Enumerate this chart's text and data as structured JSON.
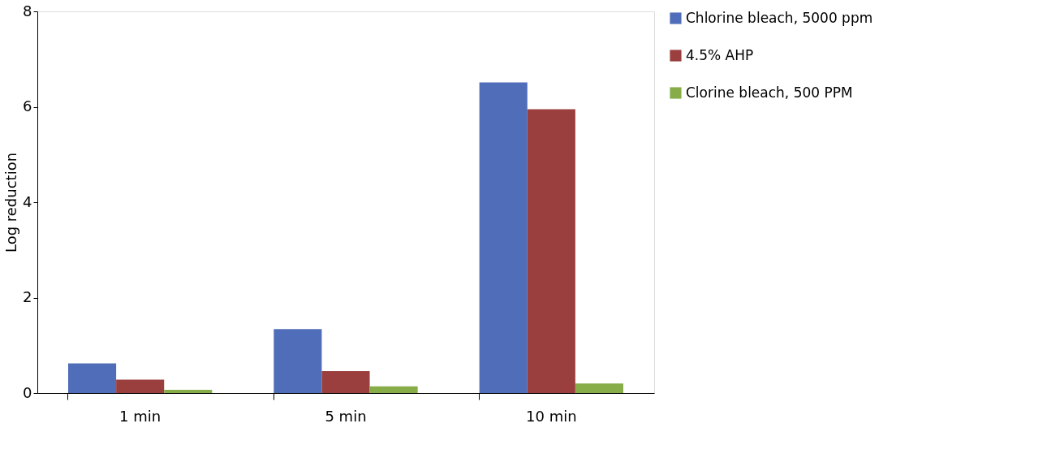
{
  "chart_data": {
    "type": "bar",
    "ylabel": "Log reduction",
    "categories": [
      "1 min",
      "5 min",
      "10 min"
    ],
    "series": [
      {
        "name": "Chlorine bleach, 5000 ppm",
        "color": "#4f6db8",
        "values": [
          0.62,
          1.34,
          6.51
        ]
      },
      {
        "name": "4.5% AHP",
        "color": "#9b3f3e",
        "values": [
          0.28,
          0.46,
          5.95
        ]
      },
      {
        "name": "Clorine bleach, 500 PPM",
        "color": "#86ad48",
        "values": [
          0.07,
          0.14,
          0.2
        ]
      }
    ],
    "ylim": [
      0,
      8
    ],
    "yticks": [
      0,
      2,
      4,
      6,
      8
    ],
    "grid": false,
    "legend": "right"
  }
}
